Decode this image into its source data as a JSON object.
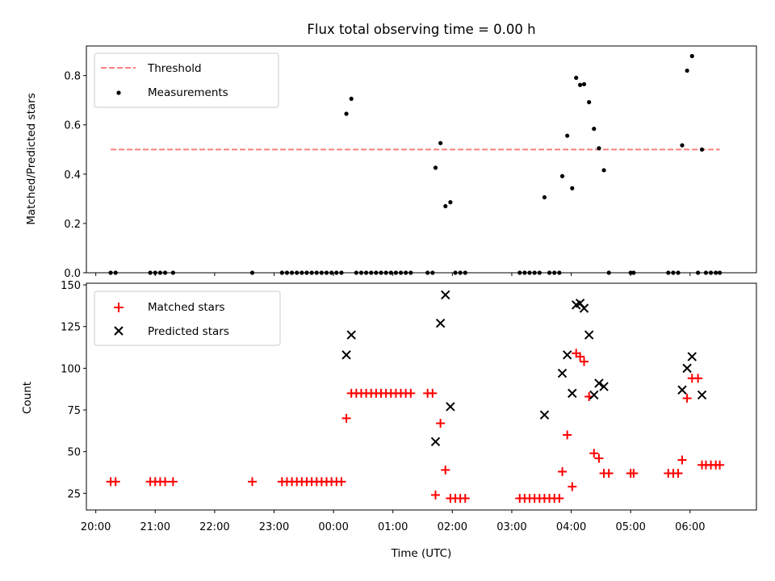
{
  "chart_data": [
    {
      "type": "scatter",
      "title": "Flux total observing time = 0.00 h",
      "xlabel": "",
      "ylabel": "Matched/Predicted stars",
      "ylim": [
        0,
        0.92
      ],
      "yticks": [
        0.0,
        0.2,
        0.4,
        0.6,
        0.8
      ],
      "ytick_labels": [
        "0.0",
        "0.2",
        "0.4",
        "0.6",
        "0.8"
      ],
      "legend_position": "upper-left",
      "grid": false,
      "threshold": {
        "name": "Threshold",
        "value": 0.5,
        "x_range": [
          "20:15",
          "06:30"
        ],
        "color": "#ff7f7f",
        "style": "dashed"
      },
      "series": [
        {
          "name": "Measurements",
          "marker": "dot",
          "color": "#000000",
          "points": [
            {
              "x": "20:15",
              "y": 0
            },
            {
              "x": "20:20",
              "y": 0
            },
            {
              "x": "20:55",
              "y": 0
            },
            {
              "x": "21:00",
              "y": 0
            },
            {
              "x": "21:05",
              "y": 0
            },
            {
              "x": "21:10",
              "y": 0
            },
            {
              "x": "21:18",
              "y": 0
            },
            {
              "x": "22:38",
              "y": 0
            },
            {
              "x": "23:08",
              "y": 0
            },
            {
              "x": "23:13",
              "y": 0
            },
            {
              "x": "23:18",
              "y": 0
            },
            {
              "x": "23:23",
              "y": 0
            },
            {
              "x": "23:28",
              "y": 0
            },
            {
              "x": "23:33",
              "y": 0
            },
            {
              "x": "23:38",
              "y": 0
            },
            {
              "x": "23:43",
              "y": 0
            },
            {
              "x": "23:48",
              "y": 0
            },
            {
              "x": "23:53",
              "y": 0
            },
            {
              "x": "23:58",
              "y": 0
            },
            {
              "x": "00:03",
              "y": 0
            },
            {
              "x": "00:08",
              "y": 0
            },
            {
              "x": "00:13",
              "y": 0.645
            },
            {
              "x": "00:18",
              "y": 0.706
            },
            {
              "x": "00:23",
              "y": 0
            },
            {
              "x": "00:28",
              "y": 0
            },
            {
              "x": "00:33",
              "y": 0
            },
            {
              "x": "00:38",
              "y": 0
            },
            {
              "x": "00:43",
              "y": 0
            },
            {
              "x": "00:48",
              "y": 0
            },
            {
              "x": "00:53",
              "y": 0
            },
            {
              "x": "00:58",
              "y": 0
            },
            {
              "x": "01:03",
              "y": 0
            },
            {
              "x": "01:08",
              "y": 0
            },
            {
              "x": "01:13",
              "y": 0
            },
            {
              "x": "01:18",
              "y": 0
            },
            {
              "x": "01:35",
              "y": 0
            },
            {
              "x": "01:40",
              "y": 0
            },
            {
              "x": "01:43",
              "y": 0.426
            },
            {
              "x": "01:48",
              "y": 0.526
            },
            {
              "x": "01:53",
              "y": 0.27
            },
            {
              "x": "01:58",
              "y": 0.286
            },
            {
              "x": "02:03",
              "y": 0
            },
            {
              "x": "02:08",
              "y": 0
            },
            {
              "x": "02:13",
              "y": 0
            },
            {
              "x": "03:08",
              "y": 0
            },
            {
              "x": "03:13",
              "y": 0
            },
            {
              "x": "03:18",
              "y": 0
            },
            {
              "x": "03:23",
              "y": 0
            },
            {
              "x": "03:28",
              "y": 0
            },
            {
              "x": "03:33",
              "y": 0.306
            },
            {
              "x": "03:38",
              "y": 0
            },
            {
              "x": "03:43",
              "y": 0
            },
            {
              "x": "03:48",
              "y": 0
            },
            {
              "x": "03:51",
              "y": 0.392
            },
            {
              "x": "03:56",
              "y": 0.556
            },
            {
              "x": "04:01",
              "y": 0.343
            },
            {
              "x": "04:05",
              "y": 0.791
            },
            {
              "x": "04:09",
              "y": 0.762
            },
            {
              "x": "04:13",
              "y": 0.765
            },
            {
              "x": "04:18",
              "y": 0.692
            },
            {
              "x": "04:23",
              "y": 0.584
            },
            {
              "x": "04:28",
              "y": 0.505
            },
            {
              "x": "04:33",
              "y": 0.416
            },
            {
              "x": "04:38",
              "y": 0
            },
            {
              "x": "05:00",
              "y": 0
            },
            {
              "x": "05:03",
              "y": 0
            },
            {
              "x": "05:38",
              "y": 0
            },
            {
              "x": "05:43",
              "y": 0
            },
            {
              "x": "05:48",
              "y": 0
            },
            {
              "x": "05:52",
              "y": 0.517
            },
            {
              "x": "05:57",
              "y": 0.82
            },
            {
              "x": "06:02",
              "y": 0.879
            },
            {
              "x": "06:08",
              "y": 0
            },
            {
              "x": "06:12",
              "y": 0.5
            },
            {
              "x": "06:16",
              "y": 0
            },
            {
              "x": "06:21",
              "y": 0
            },
            {
              "x": "06:26",
              "y": 0
            },
            {
              "x": "06:30",
              "y": 0
            }
          ]
        }
      ]
    },
    {
      "type": "scatter",
      "title": "",
      "xlabel": "Time (UTC)",
      "ylabel": "Count",
      "ylim": [
        15,
        151
      ],
      "yticks": [
        25,
        50,
        75,
        100,
        125,
        150
      ],
      "ytick_labels": [
        "25",
        "50",
        "75",
        "100",
        "125",
        "150"
      ],
      "xticks": [
        "20:00",
        "21:00",
        "22:00",
        "23:00",
        "00:00",
        "01:00",
        "02:00",
        "03:00",
        "04:00",
        "05:00",
        "06:00"
      ],
      "legend_position": "upper-left",
      "grid": false,
      "series": [
        {
          "name": "Matched stars",
          "marker": "plus",
          "color": "#ff0000",
          "points": [
            {
              "x": "20:15",
              "y": 32
            },
            {
              "x": "20:20",
              "y": 32
            },
            {
              "x": "20:55",
              "y": 32
            },
            {
              "x": "21:00",
              "y": 32
            },
            {
              "x": "21:05",
              "y": 32
            },
            {
              "x": "21:10",
              "y": 32
            },
            {
              "x": "21:18",
              "y": 32
            },
            {
              "x": "22:38",
              "y": 32
            },
            {
              "x": "23:08",
              "y": 32
            },
            {
              "x": "23:13",
              "y": 32
            },
            {
              "x": "23:18",
              "y": 32
            },
            {
              "x": "23:23",
              "y": 32
            },
            {
              "x": "23:28",
              "y": 32
            },
            {
              "x": "23:33",
              "y": 32
            },
            {
              "x": "23:38",
              "y": 32
            },
            {
              "x": "23:43",
              "y": 32
            },
            {
              "x": "23:48",
              "y": 32
            },
            {
              "x": "23:53",
              "y": 32
            },
            {
              "x": "23:58",
              "y": 32
            },
            {
              "x": "00:03",
              "y": 32
            },
            {
              "x": "00:08",
              "y": 32
            },
            {
              "x": "00:13",
              "y": 70
            },
            {
              "x": "00:18",
              "y": 85
            },
            {
              "x": "00:23",
              "y": 85
            },
            {
              "x": "00:28",
              "y": 85
            },
            {
              "x": "00:33",
              "y": 85
            },
            {
              "x": "00:38",
              "y": 85
            },
            {
              "x": "00:43",
              "y": 85
            },
            {
              "x": "00:48",
              "y": 85
            },
            {
              "x": "00:53",
              "y": 85
            },
            {
              "x": "00:58",
              "y": 85
            },
            {
              "x": "01:03",
              "y": 85
            },
            {
              "x": "01:08",
              "y": 85
            },
            {
              "x": "01:13",
              "y": 85
            },
            {
              "x": "01:18",
              "y": 85
            },
            {
              "x": "01:35",
              "y": 85
            },
            {
              "x": "01:40",
              "y": 85
            },
            {
              "x": "01:43",
              "y": 24
            },
            {
              "x": "01:48",
              "y": 67
            },
            {
              "x": "01:53",
              "y": 39
            },
            {
              "x": "01:58",
              "y": 22
            },
            {
              "x": "02:03",
              "y": 22
            },
            {
              "x": "02:08",
              "y": 22
            },
            {
              "x": "02:13",
              "y": 22
            },
            {
              "x": "03:08",
              "y": 22
            },
            {
              "x": "03:13",
              "y": 22
            },
            {
              "x": "03:18",
              "y": 22
            },
            {
              "x": "03:23",
              "y": 22
            },
            {
              "x": "03:28",
              "y": 22
            },
            {
              "x": "03:33",
              "y": 22
            },
            {
              "x": "03:38",
              "y": 22
            },
            {
              "x": "03:43",
              "y": 22
            },
            {
              "x": "03:48",
              "y": 22
            },
            {
              "x": "03:51",
              "y": 38
            },
            {
              "x": "03:56",
              "y": 60
            },
            {
              "x": "04:01",
              "y": 29
            },
            {
              "x": "04:05",
              "y": 109
            },
            {
              "x": "04:09",
              "y": 107
            },
            {
              "x": "04:13",
              "y": 104
            },
            {
              "x": "04:18",
              "y": 83
            },
            {
              "x": "04:23",
              "y": 49
            },
            {
              "x": "04:28",
              "y": 46
            },
            {
              "x": "04:33",
              "y": 37
            },
            {
              "x": "04:38",
              "y": 37
            },
            {
              "x": "05:00",
              "y": 37
            },
            {
              "x": "05:03",
              "y": 37
            },
            {
              "x": "05:38",
              "y": 37
            },
            {
              "x": "05:43",
              "y": 37
            },
            {
              "x": "05:48",
              "y": 37
            },
            {
              "x": "05:52",
              "y": 45
            },
            {
              "x": "05:57",
              "y": 82
            },
            {
              "x": "06:02",
              "y": 94
            },
            {
              "x": "06:08",
              "y": 94
            },
            {
              "x": "06:12",
              "y": 42
            },
            {
              "x": "06:16",
              "y": 42
            },
            {
              "x": "06:21",
              "y": 42
            },
            {
              "x": "06:26",
              "y": 42
            },
            {
              "x": "06:30",
              "y": 42
            }
          ]
        },
        {
          "name": "Predicted stars",
          "marker": "x",
          "color": "#000000",
          "points": [
            {
              "x": "00:13",
              "y": 108
            },
            {
              "x": "00:18",
              "y": 120
            },
            {
              "x": "01:43",
              "y": 56
            },
            {
              "x": "01:48",
              "y": 127
            },
            {
              "x": "01:53",
              "y": 144
            },
            {
              "x": "01:58",
              "y": 77
            },
            {
              "x": "03:33",
              "y": 72
            },
            {
              "x": "03:51",
              "y": 97
            },
            {
              "x": "03:56",
              "y": 108
            },
            {
              "x": "04:01",
              "y": 85
            },
            {
              "x": "04:05",
              "y": 138
            },
            {
              "x": "04:09",
              "y": 139
            },
            {
              "x": "04:13",
              "y": 136
            },
            {
              "x": "04:18",
              "y": 120
            },
            {
              "x": "04:23",
              "y": 84
            },
            {
              "x": "04:28",
              "y": 91
            },
            {
              "x": "04:33",
              "y": 89
            },
            {
              "x": "05:52",
              "y": 87
            },
            {
              "x": "05:57",
              "y": 100
            },
            {
              "x": "06:02",
              "y": 107
            },
            {
              "x": "06:12",
              "y": 84
            }
          ]
        }
      ]
    }
  ]
}
